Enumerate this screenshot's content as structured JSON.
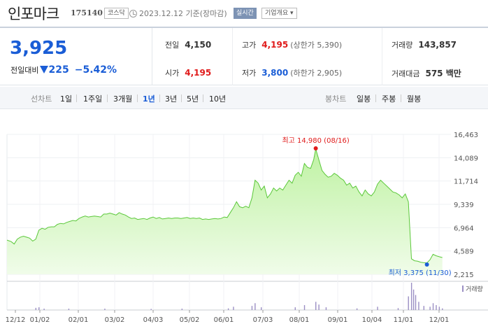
{
  "header": {
    "stock_name": "인포마크",
    "stock_code": "175140",
    "market": "코스닥",
    "date_text": "2023.12.12  기준(장마감)",
    "realtime_label": "실시간",
    "overview_label": "기업개요 ▾"
  },
  "price": {
    "current": "3,925",
    "change_label": "전일대비",
    "change_value": "225",
    "change_pct": "−5.42%"
  },
  "stats": {
    "prev_close": {
      "label": "전일",
      "value": "4,150"
    },
    "high": {
      "label": "고가",
      "value": "4,195",
      "sub": "(상한가 5,390)"
    },
    "volume": {
      "label": "거래량",
      "value": "143,857"
    },
    "open": {
      "label": "시가",
      "value": "4,195"
    },
    "low": {
      "label": "저가",
      "value": "3,800",
      "sub": "(하한가 2,905)"
    },
    "amount": {
      "label": "거래대금",
      "value": "575 백만"
    }
  },
  "period_bar": {
    "line_label": "선차트",
    "line_items": [
      "1일",
      "1주일",
      "3개월",
      "1년",
      "3년",
      "5년",
      "10년"
    ],
    "active": "1년",
    "candle_label": "봉차트",
    "candle_items": [
      "일봉",
      "주봉",
      "월봉"
    ]
  },
  "chart_data": {
    "type": "area",
    "y_ticks": [
      "16,463",
      "14,089",
      "11,714",
      "9,339",
      "6,964",
      "4,589",
      "2,215"
    ],
    "ylim": [
      2215,
      16463
    ],
    "x_labels": [
      "12/12",
      "01/02",
      "02/01",
      "03/02",
      "04/03",
      "05/02",
      "06/01",
      "07/03",
      "08/01",
      "09/01",
      "10/04",
      "11/01",
      "12/01"
    ],
    "max_annotation": "최고 14,980 (08/16)",
    "min_annotation": "최저 3,375 (11/30)",
    "volume_legend": "거래량",
    "price_series": [
      [
        0,
        5700
      ],
      [
        4,
        5550
      ],
      [
        7,
        5300
      ],
      [
        10,
        5800
      ],
      [
        13,
        6000
      ],
      [
        16,
        6100
      ],
      [
        19,
        6000
      ],
      [
        22,
        5900
      ],
      [
        25,
        5600
      ],
      [
        28,
        5800
      ],
      [
        31,
        6700
      ],
      [
        34,
        6900
      ],
      [
        37,
        6800
      ],
      [
        40,
        7000
      ],
      [
        43,
        7050
      ],
      [
        46,
        7050
      ],
      [
        49,
        7300
      ],
      [
        52,
        7400
      ],
      [
        55,
        7350
      ],
      [
        58,
        7500
      ],
      [
        61,
        7600
      ],
      [
        64,
        7700
      ],
      [
        67,
        7650
      ],
      [
        70,
        7900
      ],
      [
        73,
        8050
      ],
      [
        76,
        8150
      ],
      [
        79,
        8050
      ],
      [
        82,
        8100
      ],
      [
        85,
        8150
      ],
      [
        88,
        8100
      ],
      [
        91,
        8050
      ],
      [
        94,
        8350
      ],
      [
        97,
        8350
      ],
      [
        100,
        8450
      ],
      [
        103,
        8350
      ],
      [
        106,
        8250
      ],
      [
        109,
        8500
      ],
      [
        112,
        8350
      ],
      [
        115,
        8250
      ],
      [
        118,
        8050
      ],
      [
        121,
        7900
      ],
      [
        124,
        7950
      ],
      [
        127,
        7800
      ],
      [
        130,
        7850
      ],
      [
        133,
        7900
      ],
      [
        136,
        7800
      ],
      [
        139,
        7950
      ],
      [
        142,
        8050
      ],
      [
        145,
        7900
      ],
      [
        148,
        8000
      ],
      [
        151,
        7850
      ],
      [
        154,
        7900
      ],
      [
        157,
        7950
      ],
      [
        160,
        7900
      ],
      [
        163,
        7950
      ],
      [
        166,
        7950
      ],
      [
        169,
        7900
      ],
      [
        172,
        7950
      ],
      [
        175,
        8000
      ],
      [
        178,
        7900
      ],
      [
        181,
        7950
      ],
      [
        184,
        7900
      ],
      [
        187,
        7950
      ],
      [
        190,
        7800
      ],
      [
        193,
        7850
      ],
      [
        196,
        7800
      ],
      [
        199,
        7850
      ],
      [
        202,
        7900
      ],
      [
        205,
        7850
      ],
      [
        208,
        7900
      ],
      [
        211,
        8050
      ],
      [
        214,
        8000
      ],
      [
        217,
        8500
      ],
      [
        220,
        9000
      ],
      [
        223,
        9600
      ],
      [
        226,
        9100
      ],
      [
        229,
        9000
      ],
      [
        232,
        9150
      ],
      [
        235,
        9000
      ],
      [
        238,
        10000
      ],
      [
        241,
        11800
      ],
      [
        244,
        11500
      ],
      [
        247,
        10800
      ],
      [
        250,
        11200
      ],
      [
        253,
        10000
      ],
      [
        256,
        10400
      ],
      [
        259,
        11000
      ],
      [
        262,
        10700
      ],
      [
        265,
        11000
      ],
      [
        268,
        10800
      ],
      [
        271,
        11300
      ],
      [
        274,
        11800
      ],
      [
        277,
        11500
      ],
      [
        280,
        12300
      ],
      [
        283,
        12600
      ],
      [
        286,
        12200
      ],
      [
        289,
        13500
      ],
      [
        292,
        13100
      ],
      [
        295,
        13000
      ],
      [
        298,
        13900
      ],
      [
        300,
        14980
      ],
      [
        303,
        13900
      ],
      [
        306,
        12800
      ],
      [
        309,
        12400
      ],
      [
        312,
        12100
      ],
      [
        315,
        12200
      ],
      [
        318,
        12500
      ],
      [
        321,
        12300
      ],
      [
        324,
        12000
      ],
      [
        327,
        11800
      ],
      [
        330,
        11300
      ],
      [
        333,
        11500
      ],
      [
        336,
        11000
      ],
      [
        339,
        11200
      ],
      [
        342,
        10600
      ],
      [
        345,
        10200
      ],
      [
        348,
        10800
      ],
      [
        351,
        10400
      ],
      [
        354,
        10200
      ],
      [
        357,
        10600
      ],
      [
        360,
        11400
      ],
      [
        363,
        11800
      ],
      [
        366,
        11500
      ],
      [
        369,
        11200
      ],
      [
        372,
        10900
      ],
      [
        375,
        10600
      ],
      [
        378,
        10500
      ],
      [
        381,
        10300
      ],
      [
        384,
        10000
      ],
      [
        387,
        10400
      ],
      [
        390,
        9600
      ],
      [
        393,
        3800
      ],
      [
        396,
        3600
      ],
      [
        399,
        3550
      ],
      [
        402,
        3450
      ],
      [
        405,
        3400
      ],
      [
        408,
        3375
      ],
      [
        411,
        3700
      ],
      [
        414,
        4250
      ],
      [
        417,
        4100
      ],
      [
        420,
        4000
      ],
      [
        423,
        3925
      ]
    ],
    "x_days_total": 430,
    "volume_series": [
      [
        28,
        0.08
      ],
      [
        31,
        0.1
      ],
      [
        36,
        0.05
      ],
      [
        60,
        0.05
      ],
      [
        95,
        0.05
      ],
      [
        140,
        0.04
      ],
      [
        170,
        0.05
      ],
      [
        215,
        0.06
      ],
      [
        220,
        0.12
      ],
      [
        238,
        0.15
      ],
      [
        241,
        0.25
      ],
      [
        247,
        0.1
      ],
      [
        280,
        0.1
      ],
      [
        289,
        0.18
      ],
      [
        300,
        0.3
      ],
      [
        303,
        0.2
      ],
      [
        310,
        0.1
      ],
      [
        340,
        0.06
      ],
      [
        360,
        0.12
      ],
      [
        380,
        0.07
      ],
      [
        390,
        0.5
      ],
      [
        393,
        1.0
      ],
      [
        395,
        0.75
      ],
      [
        397,
        0.55
      ],
      [
        400,
        0.3
      ],
      [
        405,
        0.15
      ],
      [
        411,
        0.12
      ],
      [
        414,
        0.25
      ],
      [
        417,
        0.18
      ],
      [
        420,
        0.12
      ],
      [
        423,
        0.06
      ]
    ]
  }
}
